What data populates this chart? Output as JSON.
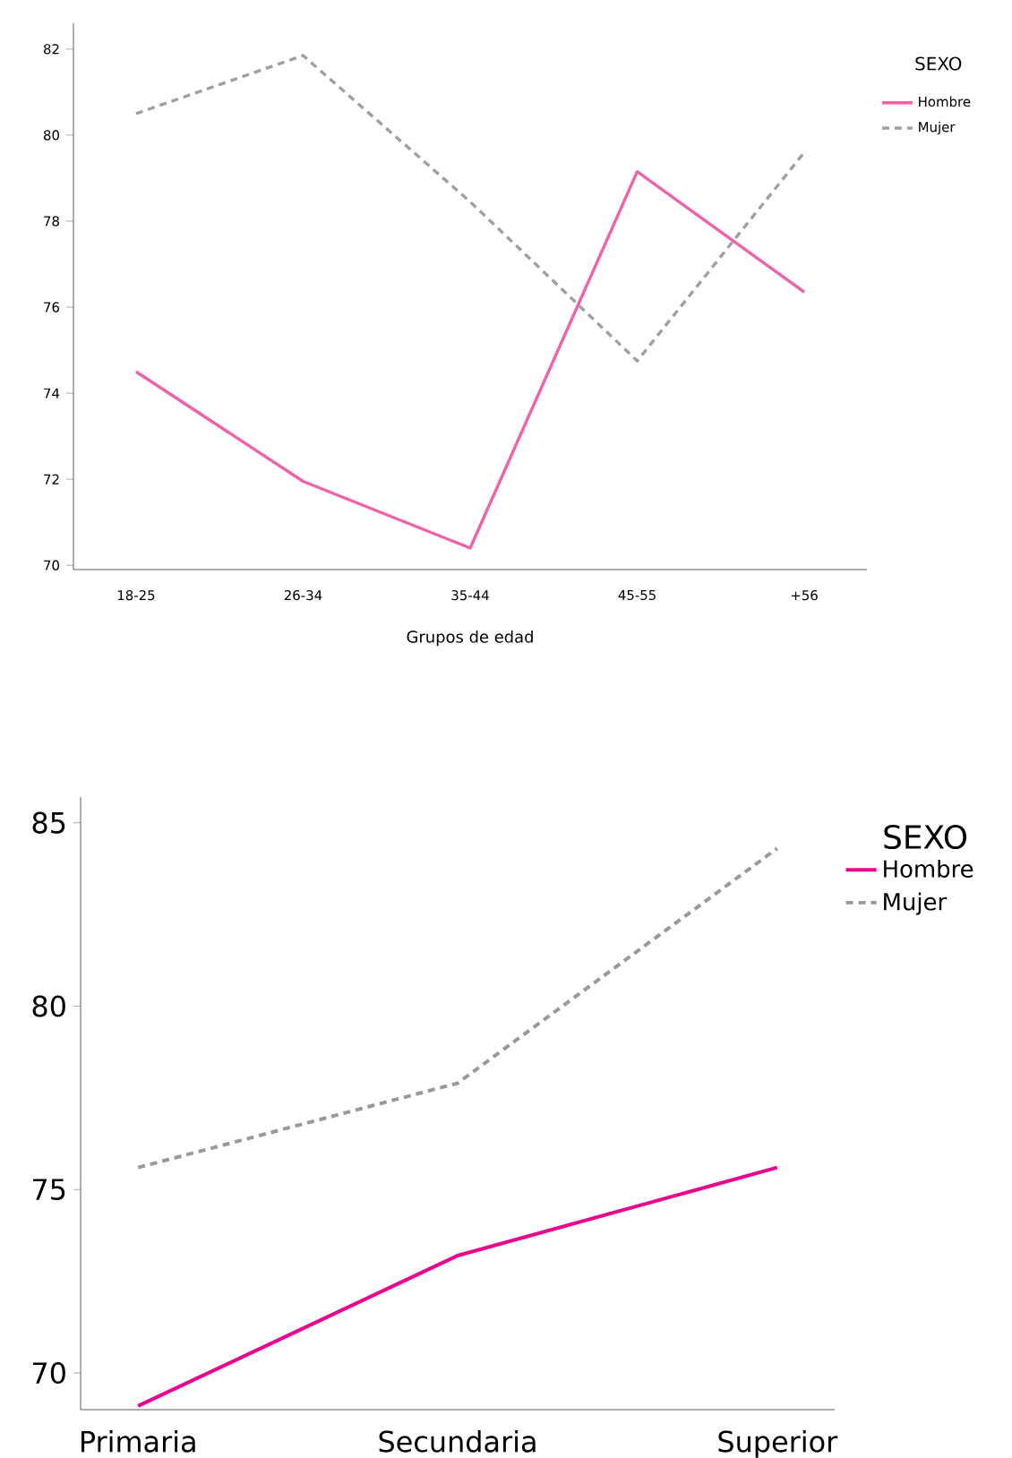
{
  "chart_data": [
    {
      "type": "line",
      "xlabel": "Grupos de edad",
      "legend_title": "SEXO",
      "legend": "top right",
      "categories": [
        "18-25",
        "26-34",
        "35-44",
        "45-55",
        "+56"
      ],
      "ylim": [
        69.9,
        82.6
      ],
      "yticks": [
        70,
        72,
        74,
        76,
        78,
        80,
        82
      ],
      "grid": false,
      "series": [
        {
          "name": "Hombre",
          "color": "#f062a8",
          "line_style": "solid",
          "values": [
            74.5,
            71.95,
            70.4,
            79.15,
            76.35
          ]
        },
        {
          "name": "Mujer",
          "color": "#a0a0a0",
          "line_style": "dashed",
          "values": [
            80.5,
            81.85,
            78.45,
            74.75,
            79.6
          ]
        }
      ]
    },
    {
      "type": "line",
      "legend_title": "SEXO",
      "legend": "top right",
      "categories": [
        "Primaria",
        "Secundaria",
        "Superior"
      ],
      "ylim": [
        69.0,
        85.7
      ],
      "yticks": [
        70,
        75,
        80,
        85
      ],
      "grid": false,
      "series": [
        {
          "name": "Hombre",
          "color": "#ec008c",
          "line_style": "solid",
          "values": [
            69.1,
            73.2,
            75.6
          ]
        },
        {
          "name": "Mujer",
          "color": "#999999",
          "line_style": "dashed",
          "values": [
            75.6,
            77.9,
            84.3
          ]
        }
      ]
    }
  ]
}
